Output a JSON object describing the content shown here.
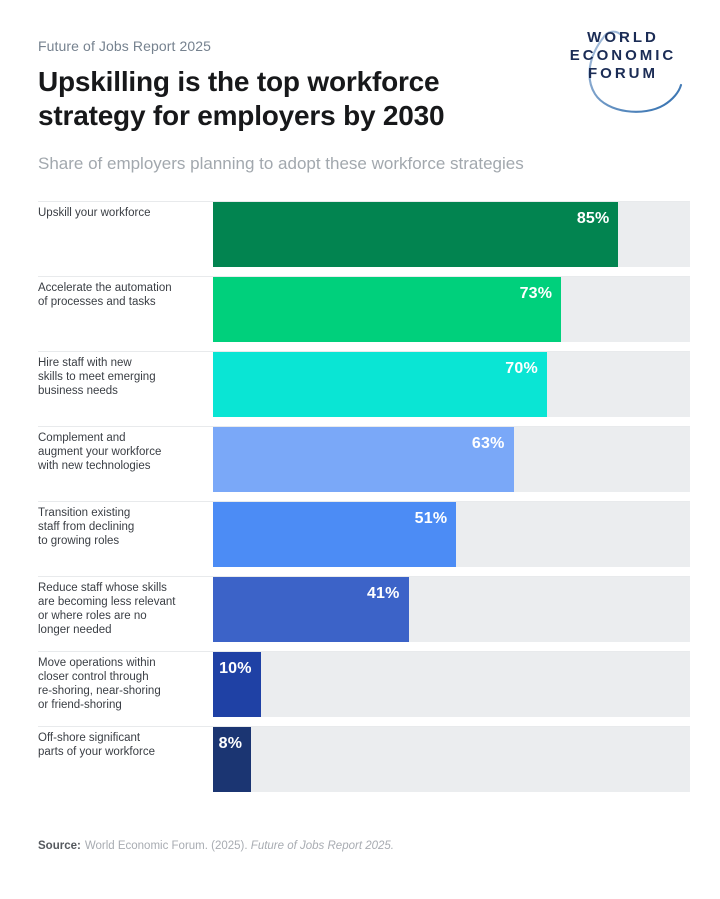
{
  "header": {
    "eyebrow": "Future of Jobs Report 2025",
    "title": "Upskilling is the top workforce\nstrategy for employers by 2030",
    "subtitle": "Share of employers planning to adopt these workforce strategies",
    "logo": {
      "line1": "WORLD",
      "line2": "ECONOMIC",
      "line3": "FORUM"
    }
  },
  "chart_data": {
    "type": "bar",
    "orientation": "horizontal",
    "title": "Upskilling is the top workforce strategy for employers by 2030",
    "subtitle": "Share of employers planning to adopt these workforce strategies",
    "xlim": [
      0,
      100
    ],
    "grid": false,
    "legend": "none",
    "value_label_position": "inside-end",
    "track_color": "#EBEDEF",
    "categories": [
      "Upskill your workforce",
      "Accelerate the automation\nof processes and tasks",
      "Hire staff with new\nskills to meet emerging\nbusiness needs",
      "Complement and\naugment your workforce\nwith new technologies",
      "Transition existing\nstaff from declining\nto growing roles",
      "Reduce staff whose skills\nare becoming less relevant\nor where roles are no\nlonger needed",
      "Move operations within\ncloser control through\nre-shoring, near-shoring\nor friend-shoring",
      "Off-shore significant\nparts of your workforce"
    ],
    "values": [
      85,
      73,
      70,
      63,
      51,
      41,
      10,
      8
    ],
    "value_labels": [
      "85%",
      "73%",
      "70%",
      "63%",
      "51%",
      "41%",
      "10%",
      "8%"
    ],
    "bar_colors": [
      "#028450",
      "#00D07C",
      "#0AE5D4",
      "#7AA8F8",
      "#4C8CF5",
      "#3C63C8",
      "#1F41A5",
      "#1B3572"
    ]
  },
  "footer": {
    "source_label": "Source:",
    "source_text": "World Economic Forum. (2025).",
    "source_italic": "Future of Jobs Report 2025."
  }
}
